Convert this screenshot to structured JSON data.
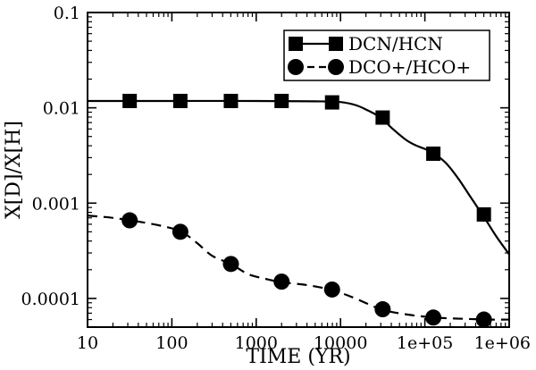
{
  "chart_data": {
    "type": "line",
    "xlabel": "TIME (YR)",
    "ylabel": "X[D]/X[H]",
    "xscale": "log",
    "yscale": "log",
    "xlim": [
      10,
      1000000
    ],
    "ylim": [
      5e-05,
      0.1
    ],
    "xticks": [
      {
        "value": 10,
        "label": "10"
      },
      {
        "value": 100,
        "label": "100"
      },
      {
        "value": 1000,
        "label": "1000"
      },
      {
        "value": 10000,
        "label": "10000"
      },
      {
        "value": 100000,
        "label": "1e+05"
      },
      {
        "value": 1000000,
        "label": "1e+06"
      }
    ],
    "yticks": [
      {
        "value": 0.0001,
        "label": "0.0001"
      },
      {
        "value": 0.001,
        "label": "0.001"
      },
      {
        "value": 0.01,
        "label": "0.01"
      },
      {
        "value": 0.1,
        "label": "0.1"
      }
    ],
    "grid": false,
    "legend_position": "top-right",
    "series": [
      {
        "name": "DCN/HCN",
        "line_style": "solid",
        "marker": "square",
        "color": "#000000",
        "curve_x": [
          10,
          100,
          1000,
          5000,
          10000,
          15000,
          20000,
          30000,
          40000,
          60000,
          80000,
          100000,
          130000,
          180000,
          250000,
          350000,
          500000,
          700000,
          1000000
        ],
        "curve_y": [
          0.0118,
          0.0118,
          0.0118,
          0.0117,
          0.0115,
          0.0107,
          0.0096,
          0.0079,
          0.0062,
          0.0046,
          0.004,
          0.0037,
          0.0033,
          0.0026,
          0.0018,
          0.00115,
          0.00072,
          0.00045,
          0.00029
        ],
        "marker_x": [
          31.6,
          126,
          501,
          2000,
          7940,
          31600,
          126000,
          501000
        ],
        "marker_y": [
          0.0118,
          0.0118,
          0.0118,
          0.0118,
          0.0114,
          0.0079,
          0.0033,
          0.00076
        ]
      },
      {
        "name": "DCO+/HCO+",
        "line_style": "dashed",
        "marker": "circle",
        "color": "#000000",
        "curve_x": [
          10,
          20,
          40,
          80,
          130,
          200,
          300,
          500,
          800,
          1300,
          2000,
          4000,
          8000,
          15000,
          30000,
          60000,
          130000,
          300000,
          600000,
          1000000
        ],
        "curve_y": [
          0.00074,
          0.0007,
          0.00064,
          0.00057,
          0.0005,
          0.00038,
          0.00028,
          0.00023,
          0.00018,
          0.00016,
          0.000148,
          0.000138,
          0.000122,
          0.0001,
          7.7e-05,
          6.8e-05,
          6.3e-05,
          6.1e-05,
          6e-05,
          6e-05
        ],
        "marker_x": [
          31.6,
          126,
          501,
          2000,
          7940,
          31600,
          126000,
          501000
        ],
        "marker_y": [
          0.00066,
          0.0005,
          0.00023,
          0.00015,
          0.000124,
          7.7e-05,
          6.3e-05,
          6e-05
        ]
      }
    ]
  }
}
